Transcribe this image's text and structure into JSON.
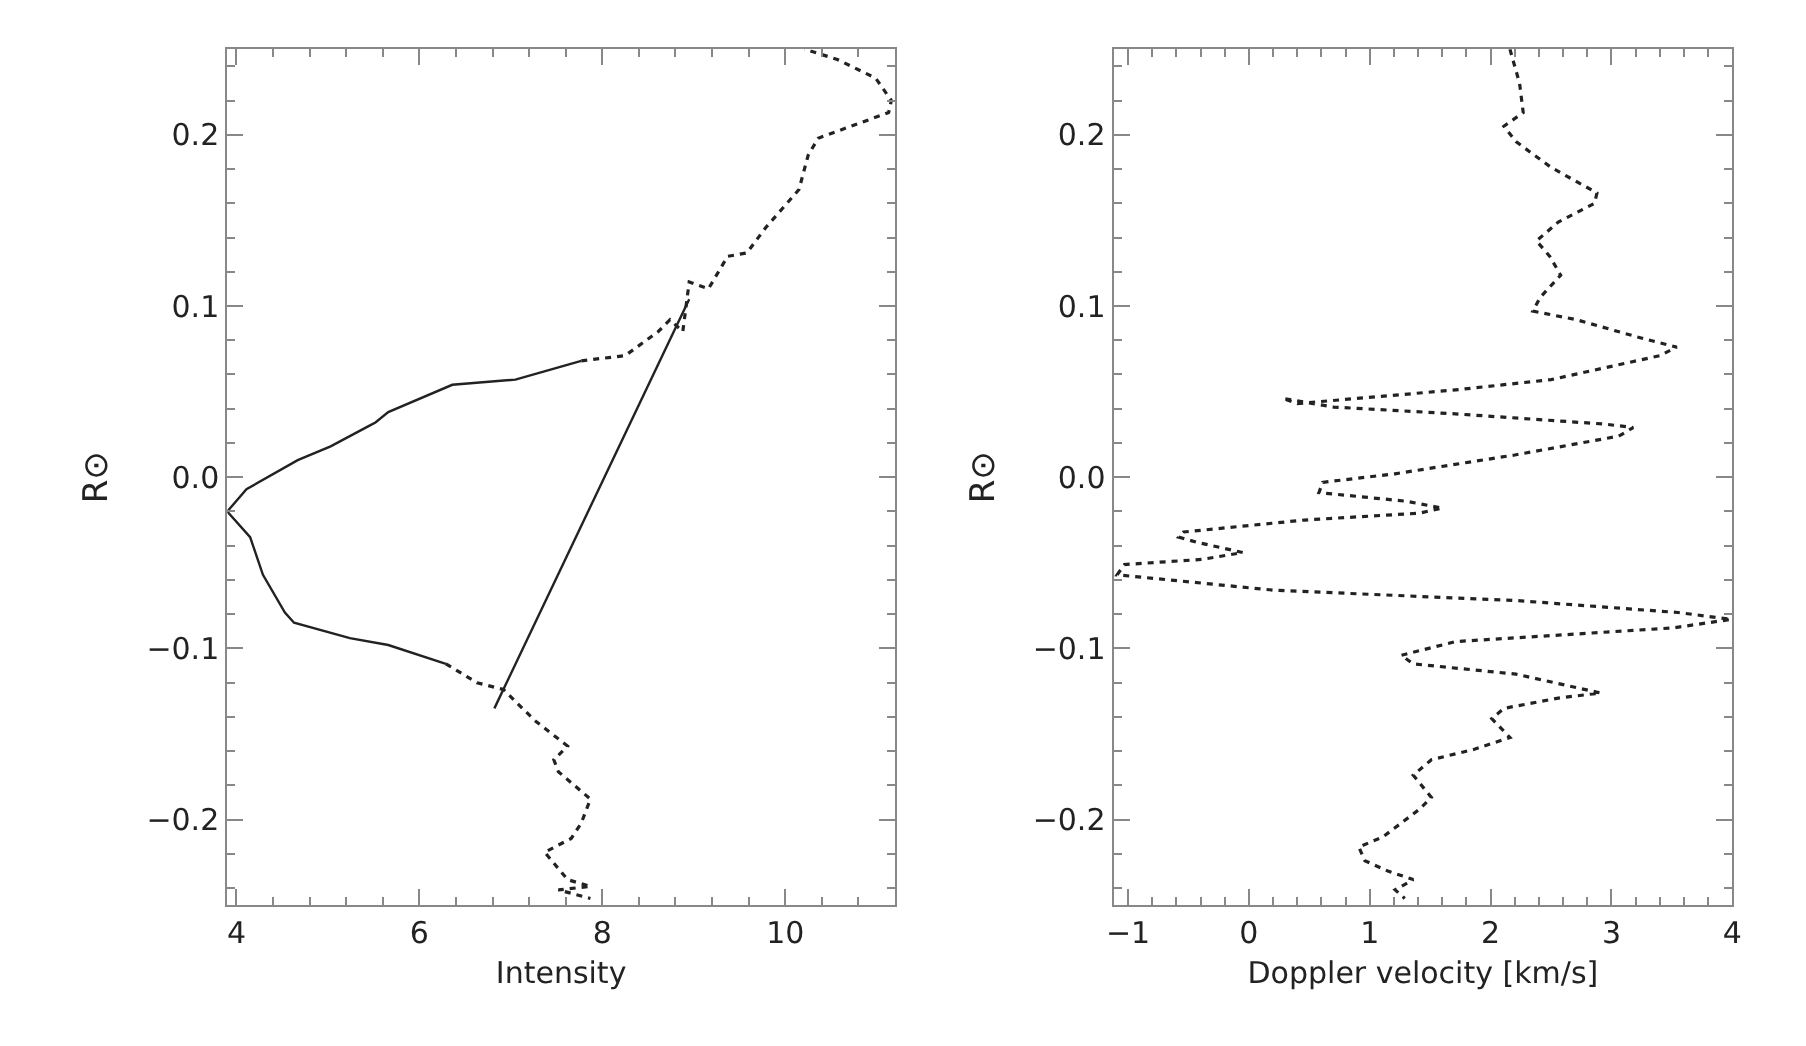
{
  "chart_data": [
    {
      "type": "line",
      "xlabel": "Intensity",
      "ylabel": "R⊙",
      "xlim": [
        3.9,
        11.2
      ],
      "ylim": [
        -0.25,
        0.25
      ],
      "xticks": [
        4,
        6,
        8,
        10
      ],
      "yticks": [
        {
          "value": -0.2,
          "label": "−0.2"
        },
        {
          "value": -0.1,
          "label": "−0.1"
        },
        {
          "value": 0,
          "label": "0.0"
        },
        {
          "value": 0.1,
          "label": "0.1"
        },
        {
          "value": 0.2,
          "label": "0.2"
        }
      ],
      "marker": "none",
      "series": [
        {
          "color": "#222222",
          "line_style": "dotted",
          "x": [
            7.77,
            8.25,
            8.61,
            8.74,
            8.88,
            8.95,
            9.16,
            9.37,
            9.58,
            9.79,
            10.15,
            10.25,
            10.36,
            11.13,
            11.16,
            10.99,
            10.57,
            10.21
          ],
          "values": [
            0.068,
            0.071,
            0.085,
            0.092,
            0.085,
            0.114,
            0.11,
            0.129,
            0.131,
            0.146,
            0.168,
            0.188,
            0.198,
            0.213,
            0.22,
            0.233,
            0.244,
            0.25
          ]
        },
        {
          "color": "#222222",
          "line_style": "solid",
          "x": [
            7.77,
            7.05,
            6.36,
            5.66,
            5.52,
            5.45,
            5.03,
            4.67,
            4.11,
            3.9,
            4.15,
            4.29,
            4.53,
            4.63,
            5.24,
            5.66,
            6.29
          ],
          "values": [
            0.068,
            0.057,
            0.054,
            0.038,
            0.032,
            0.03,
            0.018,
            0.01,
            -0.007,
            -0.02,
            -0.035,
            -0.057,
            -0.079,
            -0.085,
            -0.094,
            -0.098,
            -0.109
          ]
        },
        {
          "color": "#222222",
          "line_style": "dotted",
          "x": [
            6.29,
            6.63,
            6.92,
            7.26,
            7.62,
            7.47,
            7.52,
            7.87,
            7.77,
            7.66,
            7.37,
            7.62,
            7.87,
            7.52,
            7.87
          ],
          "values": [
            -0.109,
            -0.12,
            -0.124,
            -0.142,
            -0.157,
            -0.165,
            -0.172,
            -0.188,
            -0.202,
            -0.211,
            -0.219,
            -0.235,
            -0.239,
            -0.241,
            -0.246
          ]
        },
        {
          "color": "#222222",
          "line_style": "solid",
          "x": [
            8.95,
            6.82
          ],
          "values": [
            0.104,
            -0.135
          ]
        }
      ]
    },
    {
      "type": "line",
      "xlabel": "Doppler velocity [km/s]",
      "ylabel": "R⊙",
      "xlim": [
        -1.12,
        4.0
      ],
      "ylim": [
        -0.25,
        0.25
      ],
      "xticks": [
        {
          "value": -1,
          "label": "−1"
        },
        0,
        1,
        2,
        3,
        4
      ],
      "yticks": [
        {
          "value": -0.2,
          "label": "−0.2"
        },
        {
          "value": -0.1,
          "label": "−0.1"
        },
        {
          "value": 0,
          "label": "0.0"
        },
        {
          "value": 0.1,
          "label": "0.1"
        },
        {
          "value": 0.2,
          "label": "0.2"
        }
      ],
      "marker": "none",
      "series": [
        {
          "color": "#222222",
          "line_style": "dotted",
          "x": [
            2.16,
            2.24,
            2.27,
            2.11,
            2.21,
            2.5,
            2.88,
            2.86,
            2.56,
            2.38,
            2.49,
            2.58,
            2.41,
            2.35,
            2.71,
            3.21,
            3.54,
            3.4,
            2.5,
            1.71,
            0.4,
            0.28,
            0.7,
            1.71,
            2.95,
            3.18,
            3.06,
            2.2,
            1.21,
            0.61,
            0.58,
            1.3,
            1.6,
            1.41,
            0.46,
            -0.54,
            -0.58,
            -0.43,
            -0.05,
            -0.39,
            -1.03,
            -1.09,
            0.21,
            2.21,
            3.55,
            3.99,
            3.51,
            1.71,
            1.26,
            1.36,
            2.21,
            2.91,
            2.56,
            2.11,
            2.01,
            2.16,
            1.86,
            1.51,
            1.36,
            1.51,
            1.41,
            1.11,
            0.91,
            0.96,
            1.15,
            1.36,
            1.21,
            1.29
          ],
          "values": [
            0.25,
            0.23,
            0.213,
            0.205,
            0.196,
            0.181,
            0.166,
            0.16,
            0.149,
            0.138,
            0.129,
            0.118,
            0.105,
            0.097,
            0.092,
            0.082,
            0.076,
            0.071,
            0.057,
            0.051,
            0.043,
            0.046,
            0.041,
            0.037,
            0.031,
            0.029,
            0.024,
            0.013,
            0.002,
            -0.003,
            -0.009,
            -0.014,
            -0.018,
            -0.021,
            -0.025,
            -0.032,
            -0.035,
            -0.038,
            -0.044,
            -0.048,
            -0.051,
            -0.057,
            -0.066,
            -0.072,
            -0.079,
            -0.083,
            -0.088,
            -0.096,
            -0.104,
            -0.109,
            -0.115,
            -0.126,
            -0.129,
            -0.135,
            -0.141,
            -0.152,
            -0.159,
            -0.165,
            -0.174,
            -0.187,
            -0.194,
            -0.21,
            -0.216,
            -0.224,
            -0.23,
            -0.235,
            -0.241,
            -0.246
          ]
        }
      ]
    }
  ]
}
